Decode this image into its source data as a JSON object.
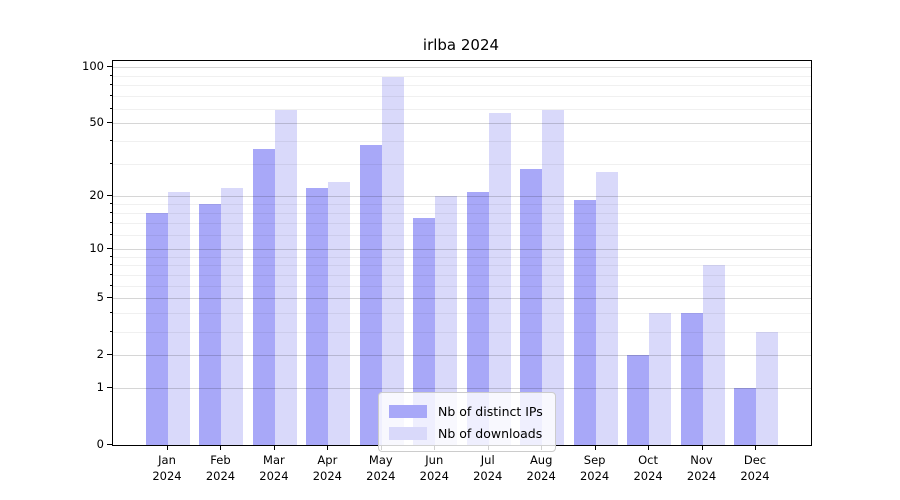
{
  "chart_data": {
    "type": "bar",
    "title": "irlba 2024",
    "categories": [
      "Jan",
      "Feb",
      "Mar",
      "Apr",
      "May",
      "Jun",
      "Jul",
      "Aug",
      "Sep",
      "Oct",
      "Nov",
      "Dec"
    ],
    "category_year": "2024",
    "series": [
      {
        "name": "Nb of distinct IPs",
        "color": "#a8a8f8",
        "values": [
          16,
          18,
          36,
          22,
          38,
          15,
          21,
          28,
          19,
          2,
          4,
          1
        ]
      },
      {
        "name": "Nb of downloads",
        "color": "#d9d9fa",
        "values": [
          21,
          22,
          59,
          24,
          89,
          20,
          57,
          59,
          27,
          4,
          8,
          3
        ]
      }
    ],
    "y_scale": "log1p",
    "y_axis_ticks": [
      0,
      1,
      2,
      5,
      10,
      20,
      50,
      100
    ],
    "y_axis_minor_ticks": [
      3,
      4,
      6,
      7,
      8,
      9,
      12,
      14,
      16,
      18,
      30,
      40,
      60,
      70,
      80,
      90
    ],
    "y_axis_max": 108,
    "ylim": [
      0,
      108
    ],
    "xlabel": "",
    "ylabel": "",
    "grid": true,
    "legend_position": "lower center"
  }
}
